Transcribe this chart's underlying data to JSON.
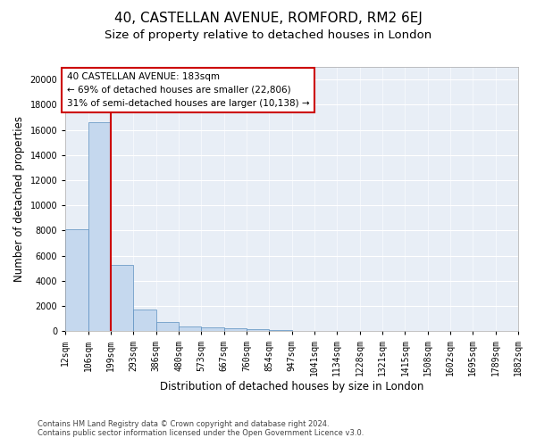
{
  "title": "40, CASTELLAN AVENUE, ROMFORD, RM2 6EJ",
  "subtitle": "Size of property relative to detached houses in London",
  "xlabel": "Distribution of detached houses by size in London",
  "ylabel": "Number of detached properties",
  "property_label": "40 CASTELLAN AVENUE: 183sqm",
  "annotation_line1": "← 69% of detached houses are smaller (22,806)",
  "annotation_line2": "31% of semi-detached houses are larger (10,138) →",
  "footnote1": "Contains HM Land Registry data © Crown copyright and database right 2024.",
  "footnote2": "Contains public sector information licensed under the Open Government Licence v3.0.",
  "bin_edges": [
    12,
    106,
    199,
    293,
    386,
    480,
    573,
    667,
    760,
    854,
    947,
    1041,
    1134,
    1228,
    1321,
    1415,
    1508,
    1602,
    1695,
    1789,
    1882
  ],
  "bin_labels": [
    "12sqm",
    "106sqm",
    "199sqm",
    "293sqm",
    "386sqm",
    "480sqm",
    "573sqm",
    "667sqm",
    "760sqm",
    "854sqm",
    "947sqm",
    "1041sqm",
    "1134sqm",
    "1228sqm",
    "1321sqm",
    "1415sqm",
    "1508sqm",
    "1602sqm",
    "1695sqm",
    "1789sqm",
    "1882sqm"
  ],
  "bar_heights": [
    8100,
    16600,
    5300,
    1750,
    700,
    380,
    280,
    220,
    180,
    100,
    50,
    30,
    20,
    15,
    10,
    8,
    6,
    5,
    4,
    3
  ],
  "bar_color": "#c5d8ee",
  "bar_edge_color": "#5a8fc0",
  "vline_x": 199,
  "vline_color": "#cc0000",
  "box_color": "#cc0000",
  "ylim": [
    0,
    21000
  ],
  "yticks": [
    0,
    2000,
    4000,
    6000,
    8000,
    10000,
    12000,
    14000,
    16000,
    18000,
    20000
  ],
  "background_color": "#e8eef6",
  "grid_color": "#ffffff",
  "title_fontsize": 11,
  "subtitle_fontsize": 9.5,
  "axis_label_fontsize": 8.5,
  "tick_fontsize": 7,
  "annotation_fontsize": 7.5,
  "footnote_fontsize": 6
}
